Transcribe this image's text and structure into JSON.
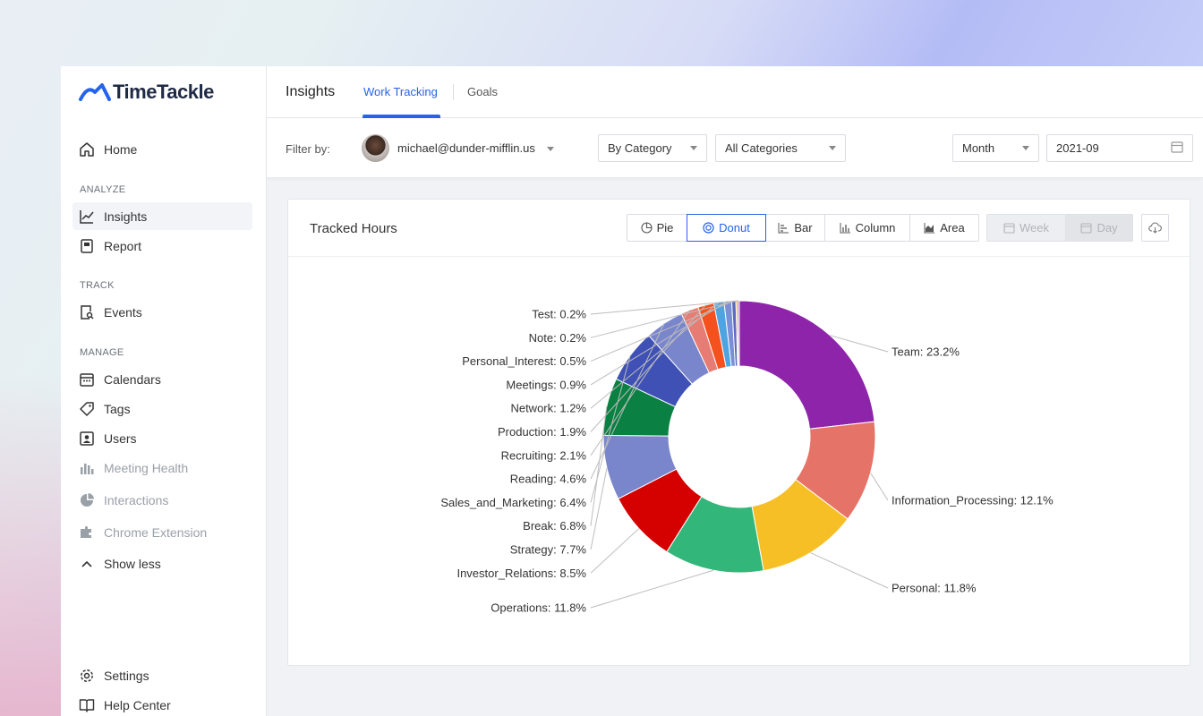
{
  "app": {
    "logo_text": "TimeTackle"
  },
  "sidebar": {
    "home": "Home",
    "sections": {
      "analyze": "ANALYZE",
      "track": "TRACK",
      "manage": "MANAGE"
    },
    "items": {
      "insights": "Insights",
      "report": "Report",
      "events": "Events",
      "calendars": "Calendars",
      "tags": "Tags",
      "users": "Users",
      "meeting_health": "Meeting Health",
      "interactions": "Interactions",
      "chrome_extension": "Chrome Extension",
      "show_less": "Show less",
      "settings": "Settings",
      "help_center": "Help Center"
    }
  },
  "header": {
    "title": "Insights",
    "tabs": [
      {
        "label": "Work Tracking",
        "active": true
      },
      {
        "label": "Goals",
        "active": false
      }
    ]
  },
  "filters": {
    "label": "Filter by:",
    "user_email": "michael@dunder-mifflin.us",
    "group_by": "By Category",
    "category": "All Categories",
    "period": "Month",
    "date": "2021-09"
  },
  "card": {
    "title": "Tracked Hours",
    "chart_types": [
      {
        "label": "Pie",
        "icon": "pie-icon",
        "active": false
      },
      {
        "label": "Donut",
        "icon": "donut-icon",
        "active": true
      },
      {
        "label": "Bar",
        "icon": "bar-icon",
        "active": false
      },
      {
        "label": "Column",
        "icon": "column-icon",
        "active": false
      },
      {
        "label": "Area",
        "icon": "area-icon",
        "active": false
      }
    ],
    "granularity": [
      {
        "label": "Week",
        "icon": "calendar-icon",
        "disabled": true
      },
      {
        "label": "Day",
        "icon": "calendar-icon",
        "disabled": true
      }
    ],
    "download_icon": "cloud-download-icon"
  },
  "chart_data": {
    "type": "pie",
    "variant": "donut",
    "title": "Tracked Hours",
    "unit": "%",
    "slices": [
      {
        "name": "Team",
        "value": 23.2,
        "color": "#8e24aa"
      },
      {
        "name": "Information_Processing",
        "value": 12.1,
        "color": "#e57368"
      },
      {
        "name": "Personal",
        "value": 11.8,
        "color": "#f6bf26"
      },
      {
        "name": "Operations",
        "value": 11.8,
        "color": "#33b679"
      },
      {
        "name": "Investor_Relations",
        "value": 8.5,
        "color": "#d50000"
      },
      {
        "name": "Strategy",
        "value": 7.7,
        "color": "#7986cb"
      },
      {
        "name": "Break",
        "value": 6.8,
        "color": "#0b8043"
      },
      {
        "name": "Sales_and_Marketing",
        "value": 6.4,
        "color": "#3f51b5"
      },
      {
        "name": "Reading",
        "value": 4.6,
        "color": "#7986cb"
      },
      {
        "name": "Recruiting",
        "value": 2.1,
        "color": "#e67c73"
      },
      {
        "name": "Production",
        "value": 1.9,
        "color": "#f4511e"
      },
      {
        "name": "Network",
        "value": 1.2,
        "color": "#4fa3e0"
      },
      {
        "name": "Meetings",
        "value": 0.9,
        "color": "#7b8fd6"
      },
      {
        "name": "Personal_Interest",
        "value": 0.5,
        "color": "#5c6bc0"
      },
      {
        "name": "Note",
        "value": 0.2,
        "color": "#f09300"
      },
      {
        "name": "Test",
        "value": 0.2,
        "color": "#9e69af"
      }
    ]
  }
}
